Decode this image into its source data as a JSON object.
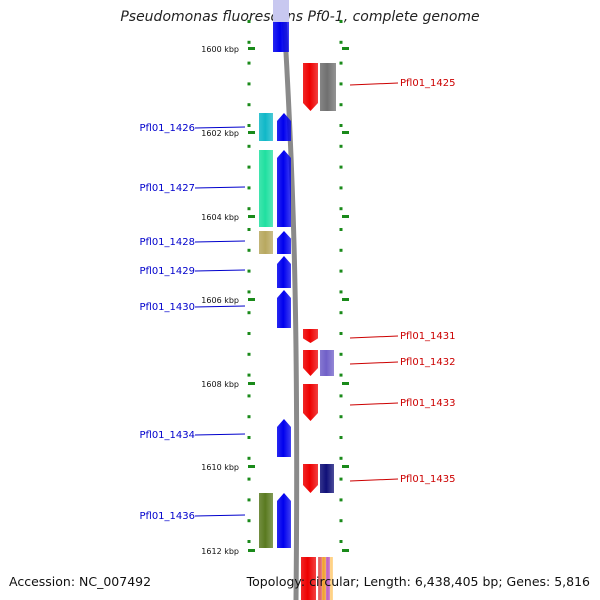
{
  "title": "Pseudomonas fluorescens Pf0-1, complete genome",
  "accession": "Accession: NC_007492",
  "summary": "Topology: circular; Length: 6,438,405 bp; Genes: 5,816",
  "scale_labels": [
    "1600 kbp",
    "1602 kbp",
    "1604 kbp",
    "1606 kbp",
    "1608 kbp",
    "1610 kbp",
    "1612 kbp"
  ],
  "colors": {
    "backbone": "#8a8a8a",
    "forward_label": "#0000cc",
    "reverse_label": "#cc0000",
    "tick": "#1a8a1a",
    "forward_gene": "#0000ee",
    "reverse_gene": "#ee0000"
  },
  "forward_genes": [
    "Pfl01_1426",
    "Pfl01_1427",
    "Pfl01_1428",
    "Pfl01_1429",
    "Pfl01_1430",
    "Pfl01_1434",
    "Pfl01_1436"
  ],
  "reverse_genes": [
    "Pfl01_1425",
    "Pfl01_1431",
    "Pfl01_1432",
    "Pfl01_1433",
    "Pfl01_1435"
  ]
}
